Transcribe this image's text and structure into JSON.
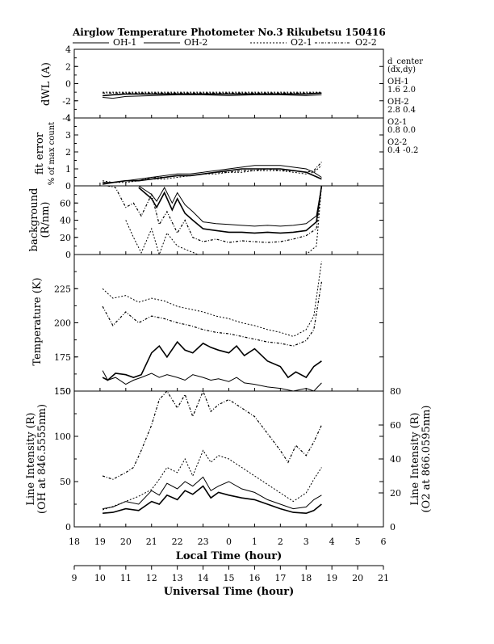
{
  "header": {
    "title": "Airglow Temperature Photometer No.3  Rikubetsu    150416"
  },
  "legend": [
    {
      "label": "OH-1",
      "dash": ""
    },
    {
      "label": "OH-2",
      "dash": ""
    },
    {
      "label": "O2-1",
      "dash": "2,2"
    },
    {
      "label": "O2-2",
      "dash": "3,2,1,2"
    }
  ],
  "annotations": {
    "dcenter_title": "d_center",
    "dcenter_sub": "(dx,dy)",
    "oh1_name": "OH-1",
    "oh1_val": "1.6   2.0",
    "oh2_name": "OH-2",
    "oh2_val": "2.8   0.4",
    "o21_name": "O2-1",
    "o21_val": "0.8   0.0",
    "o22_name": "O2-2",
    "o22_val": "0.4   -0.2"
  },
  "chart_data": [
    {
      "type": "line",
      "panel": "dwl",
      "ylabel": "dWL (A)",
      "ylim": [
        -4,
        4
      ],
      "yticks": [
        4,
        2,
        0,
        -2,
        -4
      ],
      "series": [
        {
          "name": "OH-1",
          "x": [
            19.1,
            19.5,
            20,
            21,
            22,
            23,
            24,
            25,
            26,
            27,
            27.6
          ],
          "y": [
            -1.6,
            -1.7,
            -1.5,
            -1.4,
            -1.3,
            -1.3,
            -1.4,
            -1.3,
            -1.3,
            -1.4,
            -1.3
          ]
        },
        {
          "name": "OH-2",
          "x": [
            19.1,
            19.5,
            20,
            21,
            22,
            23,
            24,
            25,
            26,
            27,
            27.6
          ],
          "y": [
            -1.4,
            -1.3,
            -1.2,
            -1.2,
            -1.2,
            -1.2,
            -1.2,
            -1.2,
            -1.2,
            -1.2,
            -1.1
          ]
        },
        {
          "name": "O2-1",
          "x": [
            19.1,
            20,
            21,
            22,
            23,
            24,
            25,
            26,
            27,
            27.6
          ],
          "y": [
            -1.0,
            -1.0,
            -1.0,
            -1.0,
            -1.0,
            -1.0,
            -1.0,
            -1.0,
            -1.0,
            -1.0
          ]
        },
        {
          "name": "O2-2",
          "x": [
            19.1,
            20,
            21,
            22,
            23,
            24,
            25,
            26,
            27,
            27.6
          ],
          "y": [
            -1.1,
            -1.1,
            -1.1,
            -1.1,
            -1.1,
            -1.1,
            -1.1,
            -1.1,
            -1.1,
            -1.1
          ]
        }
      ]
    },
    {
      "type": "line",
      "panel": "fit",
      "ylabel": "fit error",
      "ylabel2": "% of max count",
      "ylim": [
        0,
        4
      ],
      "yticks": [
        4,
        3,
        2,
        1,
        0
      ],
      "series": [
        {
          "name": "OH-1",
          "x": [
            19.1,
            19.5,
            20,
            20.5,
            21,
            21.5,
            22,
            22.5,
            23,
            23.5,
            24,
            24.5,
            25,
            25.5,
            26,
            26.5,
            27,
            27.3,
            27.6
          ],
          "y": [
            0.2,
            0.2,
            0.3,
            0.4,
            0.5,
            0.6,
            0.7,
            0.7,
            0.8,
            0.9,
            1.0,
            1.1,
            1.2,
            1.2,
            1.2,
            1.1,
            1.0,
            0.8,
            0.5
          ]
        },
        {
          "name": "OH-2",
          "x": [
            19.1,
            19.5,
            20,
            20.5,
            21,
            21.5,
            22,
            22.5,
            23,
            23.5,
            24,
            24.5,
            25,
            25.5,
            26,
            26.5,
            27,
            27.3,
            27.6
          ],
          "y": [
            0.1,
            0.2,
            0.3,
            0.3,
            0.4,
            0.5,
            0.6,
            0.6,
            0.7,
            0.8,
            0.9,
            1.0,
            1.0,
            1.0,
            1.0,
            0.9,
            0.8,
            0.6,
            0.4
          ]
        },
        {
          "name": "O2-1",
          "x": [
            19.1,
            19.5,
            20,
            20.5,
            21,
            21.5,
            22,
            22.5,
            23,
            23.5,
            24,
            24.5,
            25,
            25.5,
            26,
            26.5,
            27,
            27.3,
            27.6
          ],
          "y": [
            0.3,
            0.2,
            0.2,
            0.3,
            0.4,
            0.4,
            0.5,
            0.6,
            0.7,
            0.7,
            0.8,
            0.8,
            0.9,
            0.9,
            0.9,
            0.8,
            0.7,
            0.8,
            1.2
          ]
        },
        {
          "name": "O2-2",
          "x": [
            19.1,
            19.5,
            20,
            20.5,
            21,
            21.5,
            22,
            22.5,
            23,
            23.5,
            24,
            24.5,
            25,
            25.5,
            26,
            26.5,
            27,
            27.3,
            27.6
          ],
          "y": [
            0.2,
            0.2,
            0.3,
            0.3,
            0.5,
            0.5,
            0.6,
            0.6,
            0.7,
            0.8,
            0.8,
            0.9,
            0.9,
            1.0,
            0.9,
            0.9,
            0.8,
            0.9,
            1.4
          ]
        }
      ]
    },
    {
      "type": "line",
      "panel": "background",
      "ylabel": "background",
      "ylabel2": "(R/nm)",
      "ylim": [
        0,
        80
      ],
      "yticks": [
        60,
        40,
        20,
        0
      ],
      "series": [
        {
          "name": "OH-1",
          "x": [
            20.5,
            21,
            21.2,
            21.5,
            21.8,
            22,
            22.3,
            22.6,
            23,
            23.5,
            24,
            24.5,
            25,
            25.5,
            26,
            26.5,
            27,
            27.4,
            27.6
          ],
          "y": [
            80,
            70,
            62,
            78,
            60,
            72,
            58,
            50,
            38,
            36,
            35,
            34,
            33,
            34,
            33,
            34,
            36,
            45,
            80
          ]
        },
        {
          "name": "OH-2",
          "x": [
            20.5,
            21,
            21.2,
            21.5,
            21.8,
            22,
            22.3,
            22.6,
            23,
            23.5,
            24,
            24.5,
            25,
            25.5,
            26,
            26.5,
            27,
            27.4,
            27.6
          ],
          "y": [
            78,
            65,
            55,
            72,
            52,
            65,
            48,
            40,
            30,
            28,
            26,
            26,
            25,
            26,
            25,
            26,
            28,
            38,
            80
          ]
        },
        {
          "name": "O2-1",
          "x": [
            20,
            20.3,
            20.6,
            21,
            21.3,
            21.6,
            22,
            22.4,
            22.8,
            23.2,
            23.6,
            24,
            24.5,
            25,
            26,
            27,
            27.4,
            27.6
          ],
          "y": [
            40,
            20,
            2,
            30,
            0,
            25,
            10,
            5,
            0,
            0,
            0,
            0,
            0,
            0,
            0,
            0,
            10,
            80
          ]
        },
        {
          "name": "O2-2",
          "x": [
            19.3,
            19.6,
            20,
            20.3,
            20.6,
            21,
            21.3,
            21.6,
            22,
            22.3,
            22.6,
            23,
            23.5,
            24,
            24.5,
            25,
            25.5,
            26,
            26.5,
            27,
            27.4,
            27.6
          ],
          "y": [
            80,
            78,
            55,
            60,
            45,
            70,
            35,
            50,
            25,
            40,
            20,
            15,
            18,
            14,
            16,
            15,
            14,
            15,
            18,
            22,
            30,
            80
          ]
        }
      ]
    },
    {
      "type": "line",
      "panel": "temperature",
      "ylabel": "Temperature (K)",
      "ylim": [
        150,
        250
      ],
      "yticks": [
        225,
        200,
        175,
        150
      ],
      "series": [
        {
          "name": "OH-1",
          "x": [
            19.1,
            19.3,
            19.6,
            20,
            20.3,
            20.6,
            21,
            21.3,
            21.6,
            22,
            22.3,
            22.6,
            23,
            23.3,
            23.6,
            24,
            24.3,
            24.6,
            25,
            25.5,
            26,
            26.5,
            27,
            27.3,
            27.6
          ],
          "y": [
            165,
            158,
            160,
            155,
            158,
            160,
            163,
            160,
            162,
            160,
            158,
            162,
            160,
            158,
            159,
            157,
            160,
            156,
            155,
            153,
            152,
            150,
            152,
            150,
            156
          ]
        },
        {
          "name": "OH-2",
          "x": [
            19.1,
            19.3,
            19.6,
            20,
            20.3,
            20.6,
            21,
            21.3,
            21.6,
            22,
            22.3,
            22.6,
            23,
            23.3,
            23.6,
            24,
            24.3,
            24.6,
            25,
            25.5,
            26,
            26.3,
            26.6,
            27,
            27.3,
            27.6
          ],
          "y": [
            160,
            158,
            163,
            162,
            160,
            162,
            178,
            183,
            175,
            186,
            180,
            178,
            185,
            182,
            180,
            178,
            183,
            176,
            181,
            172,
            168,
            160,
            164,
            160,
            168,
            172
          ]
        },
        {
          "name": "O2-1",
          "x": [
            19.1,
            19.5,
            20,
            20.5,
            21,
            21.5,
            22,
            22.5,
            23,
            23.5,
            24,
            24.5,
            25,
            25.5,
            26,
            26.5,
            27,
            27.3,
            27.6
          ],
          "y": [
            225,
            218,
            220,
            215,
            218,
            216,
            212,
            210,
            208,
            205,
            203,
            200,
            198,
            195,
            193,
            190,
            195,
            205,
            245
          ]
        },
        {
          "name": "O2-2",
          "x": [
            19.1,
            19.5,
            20,
            20.5,
            21,
            21.5,
            22,
            22.5,
            23,
            23.5,
            24,
            24.5,
            25,
            25.5,
            26,
            26.5,
            27,
            27.3,
            27.6
          ],
          "y": [
            212,
            198,
            208,
            200,
            205,
            203,
            200,
            198,
            195,
            193,
            192,
            190,
            188,
            186,
            185,
            183,
            187,
            195,
            230
          ]
        }
      ]
    },
    {
      "type": "line",
      "panel": "intensity",
      "ylabel": "Line Intensity (R)",
      "ylabel2": "(OH at 846.5555nm)",
      "ylabel_right": "Line Intensity (R)",
      "ylabel_right2": "(O2 at 866.0595nm)",
      "ylim": [
        0,
        150
      ],
      "ylim_right": [
        0,
        80
      ],
      "yticks": [
        150,
        100,
        50,
        0
      ],
      "yticks_right": [
        80,
        60,
        40,
        20,
        0
      ],
      "series": [
        {
          "name": "OH-1",
          "axis": "left",
          "x": [
            19.1,
            19.5,
            20,
            20.5,
            21,
            21.3,
            21.6,
            22,
            22.3,
            22.6,
            23,
            23.3,
            23.6,
            24,
            24.5,
            25,
            25.5,
            26,
            26.5,
            27,
            27.3,
            27.6
          ],
          "y": [
            20,
            22,
            28,
            25,
            40,
            35,
            48,
            42,
            50,
            45,
            55,
            40,
            45,
            50,
            42,
            38,
            30,
            25,
            20,
            22,
            30,
            35
          ]
        },
        {
          "name": "OH-2",
          "axis": "left",
          "x": [
            19.1,
            19.5,
            20,
            20.5,
            21,
            21.3,
            21.6,
            22,
            22.3,
            22.6,
            23,
            23.3,
            23.6,
            24,
            24.5,
            25,
            25.5,
            26,
            26.5,
            27,
            27.3,
            27.6
          ],
          "y": [
            15,
            16,
            20,
            18,
            28,
            25,
            35,
            30,
            40,
            36,
            45,
            32,
            38,
            35,
            32,
            30,
            25,
            20,
            16,
            15,
            18,
            25
          ]
        },
        {
          "name": "O2-1",
          "axis": "right",
          "x": [
            19.1,
            19.5,
            20,
            20.5,
            21,
            21.3,
            21.6,
            22,
            22.3,
            22.6,
            23,
            23.3,
            23.6,
            24,
            24.5,
            25,
            25.5,
            26,
            26.5,
            27,
            27.3,
            27.6
          ],
          "y": [
            10,
            12,
            15,
            18,
            22,
            28,
            35,
            32,
            40,
            30,
            45,
            38,
            42,
            40,
            35,
            30,
            25,
            20,
            15,
            20,
            28,
            35
          ]
        },
        {
          "name": "O2-2",
          "axis": "right",
          "x": [
            19.1,
            19.5,
            20,
            20.3,
            20.6,
            21,
            21.3,
            21.6,
            22,
            22.3,
            22.6,
            23,
            23.3,
            23.6,
            24,
            24.5,
            25,
            25.5,
            26,
            26.3,
            26.6,
            27,
            27.3,
            27.6
          ],
          "y": [
            30,
            28,
            32,
            35,
            45,
            60,
            75,
            80,
            70,
            78,
            65,
            80,
            68,
            72,
            75,
            70,
            65,
            55,
            45,
            38,
            48,
            42,
            50,
            60
          ]
        }
      ]
    }
  ],
  "xaxis": {
    "range": [
      18,
      30
    ],
    "local_ticks": [
      18,
      19,
      20,
      21,
      22,
      23,
      0,
      1,
      2,
      3,
      4,
      5,
      6
    ],
    "local_label": "Local Time (hour)",
    "ut_ticks": [
      9,
      10,
      11,
      12,
      13,
      14,
      15,
      16,
      17,
      18,
      19,
      20,
      21
    ],
    "ut_label": "Universal Time (hour)"
  }
}
